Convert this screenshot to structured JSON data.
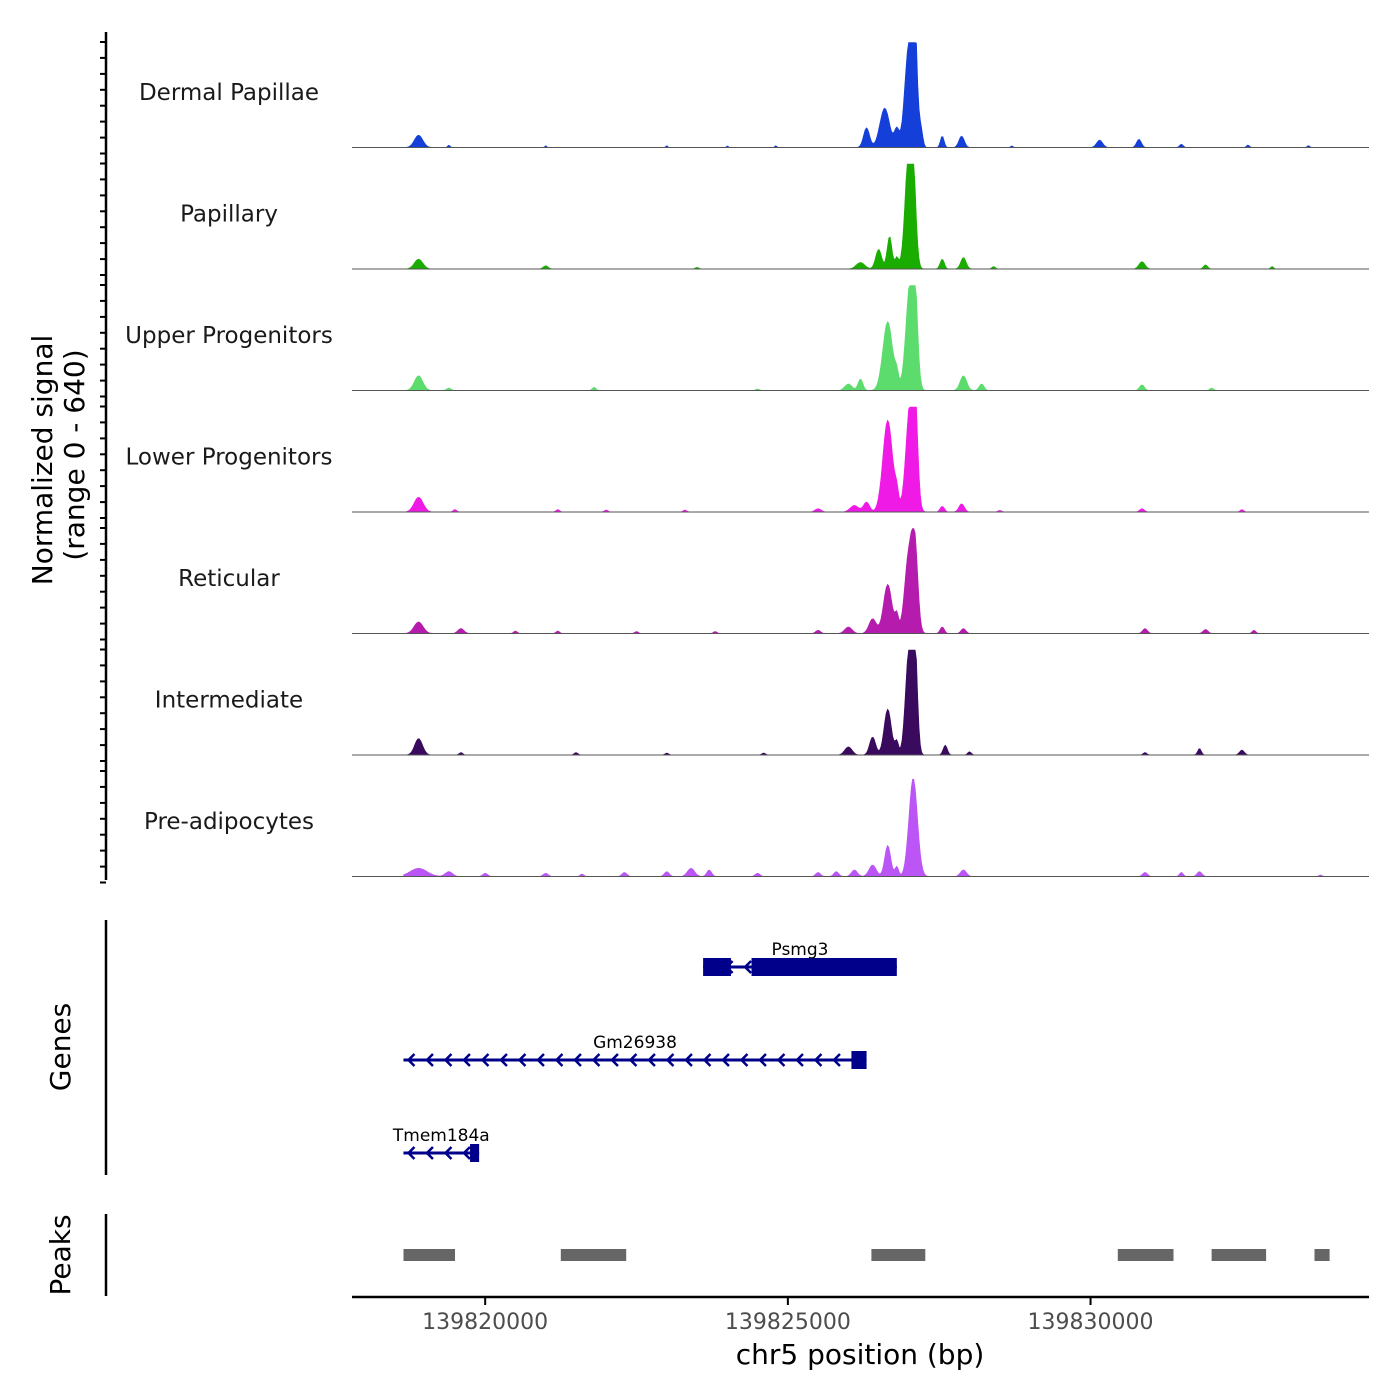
{
  "chart_data": {
    "type": "area",
    "title": "",
    "xlabel": "chr5 position (bp)",
    "ylabel": "Normalized signal",
    "ylabel_range": "(range 0 - 640)",
    "xlim": [
      139817800,
      139834600
    ],
    "ylim": [
      0,
      640
    ],
    "x_ticks": [
      139820000,
      139825000,
      139830000
    ],
    "x_tick_labels": [
      "139820000",
      "139825000",
      "139830000"
    ],
    "series": [
      {
        "name": "Dermal Papillae",
        "color": "#1440d9",
        "peaks": [
          [
            139818900,
            70,
            75
          ],
          [
            139819400,
            20,
            15
          ],
          [
            139821000,
            15,
            12
          ],
          [
            139823000,
            15,
            12
          ],
          [
            139824000,
            12,
            12
          ],
          [
            139824800,
            15,
            12
          ],
          [
            139826300,
            50,
            120
          ],
          [
            139826600,
            80,
            240
          ],
          [
            139826800,
            40,
            110
          ],
          [
            139826980,
            60,
            520
          ],
          [
            139827060,
            40,
            640
          ],
          [
            139827100,
            45,
            500
          ],
          [
            139827200,
            30,
            100
          ],
          [
            139827550,
            30,
            70
          ],
          [
            139827870,
            45,
            70
          ],
          [
            139828700,
            20,
            10
          ],
          [
            139830150,
            50,
            45
          ],
          [
            139830800,
            40,
            50
          ],
          [
            139831500,
            30,
            20
          ],
          [
            139832600,
            25,
            15
          ],
          [
            139833600,
            20,
            12
          ]
        ]
      },
      {
        "name": "Papillary",
        "color": "#1aad00",
        "peaks": [
          [
            139818900,
            70,
            60
          ],
          [
            139821000,
            40,
            20
          ],
          [
            139823500,
            30,
            10
          ],
          [
            139826200,
            70,
            40
          ],
          [
            139826500,
            50,
            120
          ],
          [
            139826680,
            40,
            200
          ],
          [
            139826800,
            30,
            70
          ],
          [
            139826990,
            60,
            600
          ],
          [
            139827060,
            50,
            570
          ],
          [
            139827550,
            35,
            60
          ],
          [
            139827900,
            45,
            70
          ],
          [
            139828400,
            30,
            15
          ],
          [
            139830850,
            50,
            45
          ],
          [
            139831900,
            35,
            25
          ],
          [
            139833000,
            25,
            15
          ]
        ]
      },
      {
        "name": "Upper Progenitors",
        "color": "#5ddc6e",
        "peaks": [
          [
            139818900,
            70,
            90
          ],
          [
            139819400,
            35,
            15
          ],
          [
            139821800,
            30,
            20
          ],
          [
            139824500,
            30,
            10
          ],
          [
            139826000,
            60,
            40
          ],
          [
            139826200,
            40,
            70
          ],
          [
            139826650,
            80,
            420
          ],
          [
            139826800,
            30,
            80
          ],
          [
            139827020,
            70,
            640
          ],
          [
            139827100,
            45,
            420
          ],
          [
            139827900,
            55,
            90
          ],
          [
            139828200,
            40,
            40
          ],
          [
            139830850,
            40,
            35
          ],
          [
            139832000,
            30,
            15
          ]
        ]
      },
      {
        "name": "Lower Progenitors",
        "color": "#f01ae6",
        "peaks": [
          [
            139818900,
            75,
            90
          ],
          [
            139819500,
            30,
            15
          ],
          [
            139821200,
            30,
            15
          ],
          [
            139822000,
            30,
            12
          ],
          [
            139823300,
            30,
            12
          ],
          [
            139825500,
            50,
            20
          ],
          [
            139826100,
            70,
            40
          ],
          [
            139826300,
            50,
            60
          ],
          [
            139826650,
            80,
            560
          ],
          [
            139826800,
            30,
            90
          ],
          [
            139827020,
            70,
            640
          ],
          [
            139827100,
            45,
            500
          ],
          [
            139827550,
            35,
            35
          ],
          [
            139827870,
            45,
            50
          ],
          [
            139828500,
            30,
            10
          ],
          [
            139830850,
            40,
            20
          ],
          [
            139832500,
            30,
            15
          ]
        ]
      },
      {
        "name": "Reticular",
        "color": "#b51cae",
        "peaks": [
          [
            139818900,
            75,
            70
          ],
          [
            139819600,
            50,
            30
          ],
          [
            139820500,
            30,
            15
          ],
          [
            139821200,
            30,
            15
          ],
          [
            139822500,
            30,
            12
          ],
          [
            139823800,
            30,
            12
          ],
          [
            139825500,
            40,
            20
          ],
          [
            139826000,
            60,
            40
          ],
          [
            139826400,
            60,
            90
          ],
          [
            139826650,
            70,
            300
          ],
          [
            139826800,
            30,
            100
          ],
          [
            139827000,
            70,
            480
          ],
          [
            139827100,
            50,
            450
          ],
          [
            139827550,
            35,
            40
          ],
          [
            139827900,
            40,
            30
          ],
          [
            139830900,
            40,
            30
          ],
          [
            139831900,
            40,
            25
          ],
          [
            139832700,
            30,
            20
          ]
        ]
      },
      {
        "name": "Intermediate",
        "color": "#3a0a5e",
        "peaks": [
          [
            139818900,
            65,
            100
          ],
          [
            139819600,
            30,
            15
          ],
          [
            139821500,
            30,
            15
          ],
          [
            139823000,
            30,
            12
          ],
          [
            139824600,
            30,
            12
          ],
          [
            139826000,
            60,
            50
          ],
          [
            139826400,
            50,
            110
          ],
          [
            139826650,
            60,
            280
          ],
          [
            139826800,
            30,
            80
          ],
          [
            139826990,
            55,
            540
          ],
          [
            139827060,
            40,
            600
          ],
          [
            139827110,
            40,
            420
          ],
          [
            139827600,
            35,
            60
          ],
          [
            139828000,
            30,
            20
          ],
          [
            139830900,
            30,
            15
          ],
          [
            139831800,
            30,
            40
          ],
          [
            139832500,
            40,
            30
          ]
        ]
      },
      {
        "name": "Pre-adipocytes",
        "color": "#bb55f5",
        "peaks": [
          [
            139818900,
            140,
            50
          ],
          [
            139819400,
            60,
            30
          ],
          [
            139820000,
            40,
            20
          ],
          [
            139821000,
            40,
            20
          ],
          [
            139821600,
            30,
            15
          ],
          [
            139822300,
            40,
            25
          ],
          [
            139823000,
            40,
            30
          ],
          [
            139823400,
            60,
            50
          ],
          [
            139823700,
            40,
            40
          ],
          [
            139824500,
            40,
            20
          ],
          [
            139825500,
            40,
            25
          ],
          [
            139825800,
            40,
            30
          ],
          [
            139826100,
            50,
            40
          ],
          [
            139826400,
            60,
            70
          ],
          [
            139826650,
            50,
            190
          ],
          [
            139826800,
            30,
            60
          ],
          [
            139827070,
            70,
            600
          ],
          [
            139827900,
            50,
            40
          ],
          [
            139830900,
            40,
            25
          ],
          [
            139831500,
            30,
            25
          ],
          [
            139831800,
            40,
            30
          ],
          [
            139833800,
            25,
            10
          ]
        ]
      }
    ],
    "genes_label": "Genes",
    "genes": [
      {
        "name": "Psmg3",
        "strand": "-",
        "start": 139823600,
        "end": 139826800,
        "exons": [
          [
            139823600,
            139824060
          ],
          [
            139824400,
            139826800
          ]
        ],
        "thick_ranges": [
          [
            139826200,
            139826500
          ]
        ]
      },
      {
        "name": "Gm26938",
        "strand": "-",
        "start": 139818650,
        "end": 139826300,
        "exons": [
          [
            139826050,
            139826300
          ]
        ],
        "thick_ranges": []
      },
      {
        "name": "Tmem184a",
        "strand": "-",
        "start": 139818650,
        "end": 139819900,
        "exons": [
          [
            139819750,
            139819900
          ]
        ],
        "thick_ranges": []
      }
    ],
    "peaks_label": "Peaks",
    "peak_regions": [
      [
        139818650,
        139819500
      ],
      [
        139821250,
        139822330
      ],
      [
        139826380,
        139827270
      ],
      [
        139830450,
        139831370
      ],
      [
        139832000,
        139832900
      ],
      [
        139833700,
        139833950
      ]
    ],
    "colors": {
      "gene": "#00008b",
      "peak_region": "#666666",
      "axis": "#000000",
      "baseline": "#555555",
      "tick_label": "#4d4d4d"
    }
  }
}
